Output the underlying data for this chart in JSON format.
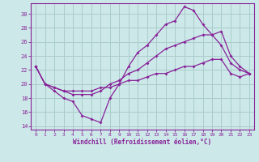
{
  "xlabel": "Windchill (Refroidissement éolien,°C)",
  "background_color": "#cce8e8",
  "grid_color": "#aacccc",
  "line_color": "#882299",
  "xlim": [
    -0.5,
    23.5
  ],
  "ylim": [
    13.5,
    31.5
  ],
  "xticks": [
    0,
    1,
    2,
    3,
    4,
    5,
    6,
    7,
    8,
    9,
    10,
    11,
    12,
    13,
    14,
    15,
    16,
    17,
    18,
    19,
    20,
    21,
    22,
    23
  ],
  "yticks": [
    14,
    16,
    18,
    20,
    22,
    24,
    26,
    28,
    30
  ],
  "line1_x": [
    0,
    1,
    2,
    3,
    4,
    5,
    6,
    7,
    8,
    9,
    10,
    11,
    12,
    13,
    14,
    15,
    16,
    17,
    18,
    19,
    20,
    21,
    22,
    23
  ],
  "line1_y": [
    22.5,
    20.0,
    19.0,
    18.0,
    17.5,
    15.5,
    15.0,
    14.5,
    18.0,
    20.0,
    22.5,
    24.5,
    25.5,
    27.0,
    28.5,
    29.0,
    31.0,
    30.5,
    28.5,
    27.0,
    25.5,
    23.0,
    22.0,
    21.5
  ],
  "line2_x": [
    0,
    1,
    2,
    3,
    4,
    5,
    6,
    7,
    8,
    9,
    10,
    11,
    12,
    13,
    14,
    15,
    16,
    17,
    18,
    19,
    20,
    21,
    22,
    23
  ],
  "line2_y": [
    22.5,
    20.0,
    19.5,
    19.0,
    18.5,
    18.5,
    18.5,
    19.0,
    20.0,
    20.5,
    21.5,
    22.0,
    23.0,
    24.0,
    25.0,
    25.5,
    26.0,
    26.5,
    27.0,
    27.0,
    27.5,
    24.0,
    22.5,
    21.5
  ],
  "line3_x": [
    0,
    1,
    2,
    3,
    4,
    5,
    6,
    7,
    8,
    9,
    10,
    11,
    12,
    13,
    14,
    15,
    16,
    17,
    18,
    19,
    20,
    21,
    22,
    23
  ],
  "line3_y": [
    22.5,
    20.0,
    19.5,
    19.0,
    19.0,
    19.0,
    19.0,
    19.5,
    19.5,
    20.0,
    20.5,
    20.5,
    21.0,
    21.5,
    21.5,
    22.0,
    22.5,
    22.5,
    23.0,
    23.5,
    23.5,
    21.5,
    21.0,
    21.5
  ]
}
